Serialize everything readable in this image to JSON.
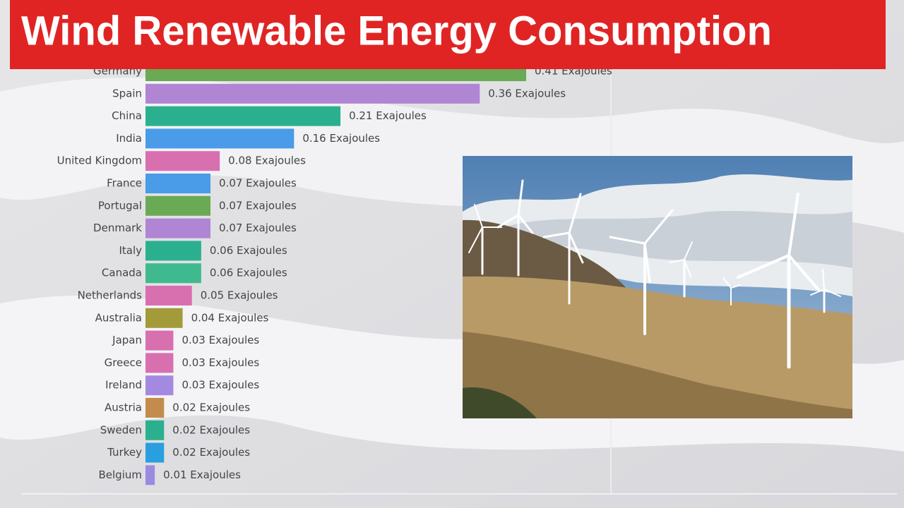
{
  "chart_data": {
    "type": "bar",
    "orientation": "horizontal",
    "title": "Wind Renewable Energy Consumption",
    "categories": [
      "Germany",
      "Spain",
      "China",
      "India",
      "United Kingdom",
      "France",
      "Portugal",
      "Denmark",
      "Italy",
      "Canada",
      "Netherlands",
      "Australia",
      "Japan",
      "Greece",
      "Ireland",
      "Austria",
      "Sweden",
      "Turkey",
      "Belgium"
    ],
    "values": [
      0.41,
      0.36,
      0.21,
      0.16,
      0.08,
      0.07,
      0.07,
      0.07,
      0.06,
      0.06,
      0.05,
      0.04,
      0.03,
      0.03,
      0.03,
      0.02,
      0.02,
      0.02,
      0.01
    ],
    "value_labels": [
      "0.41 Exajoules",
      "0.36 Exajoules",
      "0.21 Exajoules",
      "0.16 Exajoules",
      "0.08 Exajoules",
      "0.07 Exajoules",
      "0.07 Exajoules",
      "0.07 Exajoules",
      "0.06 Exajoules",
      "0.06 Exajoules",
      "0.05 Exajoules",
      "0.04 Exajoules",
      "0.03 Exajoules",
      "0.03 Exajoules",
      "0.03 Exajoules",
      "0.02 Exajoules",
      "0.02 Exajoules",
      "0.02 Exajoules",
      "0.01 Exajoules"
    ],
    "colors": [
      "#6aaa55",
      "#b085d4",
      "#2bb08f",
      "#4a9be8",
      "#d870b0",
      "#4a9be8",
      "#6aaa55",
      "#b085d4",
      "#2bb08f",
      "#3fba8f",
      "#d870b0",
      "#a39a3a",
      "#d870b0",
      "#d870b0",
      "#a38ae0",
      "#c48c4c",
      "#2bb08f",
      "#2a9fe0",
      "#9c8ae0"
    ]
  }
}
